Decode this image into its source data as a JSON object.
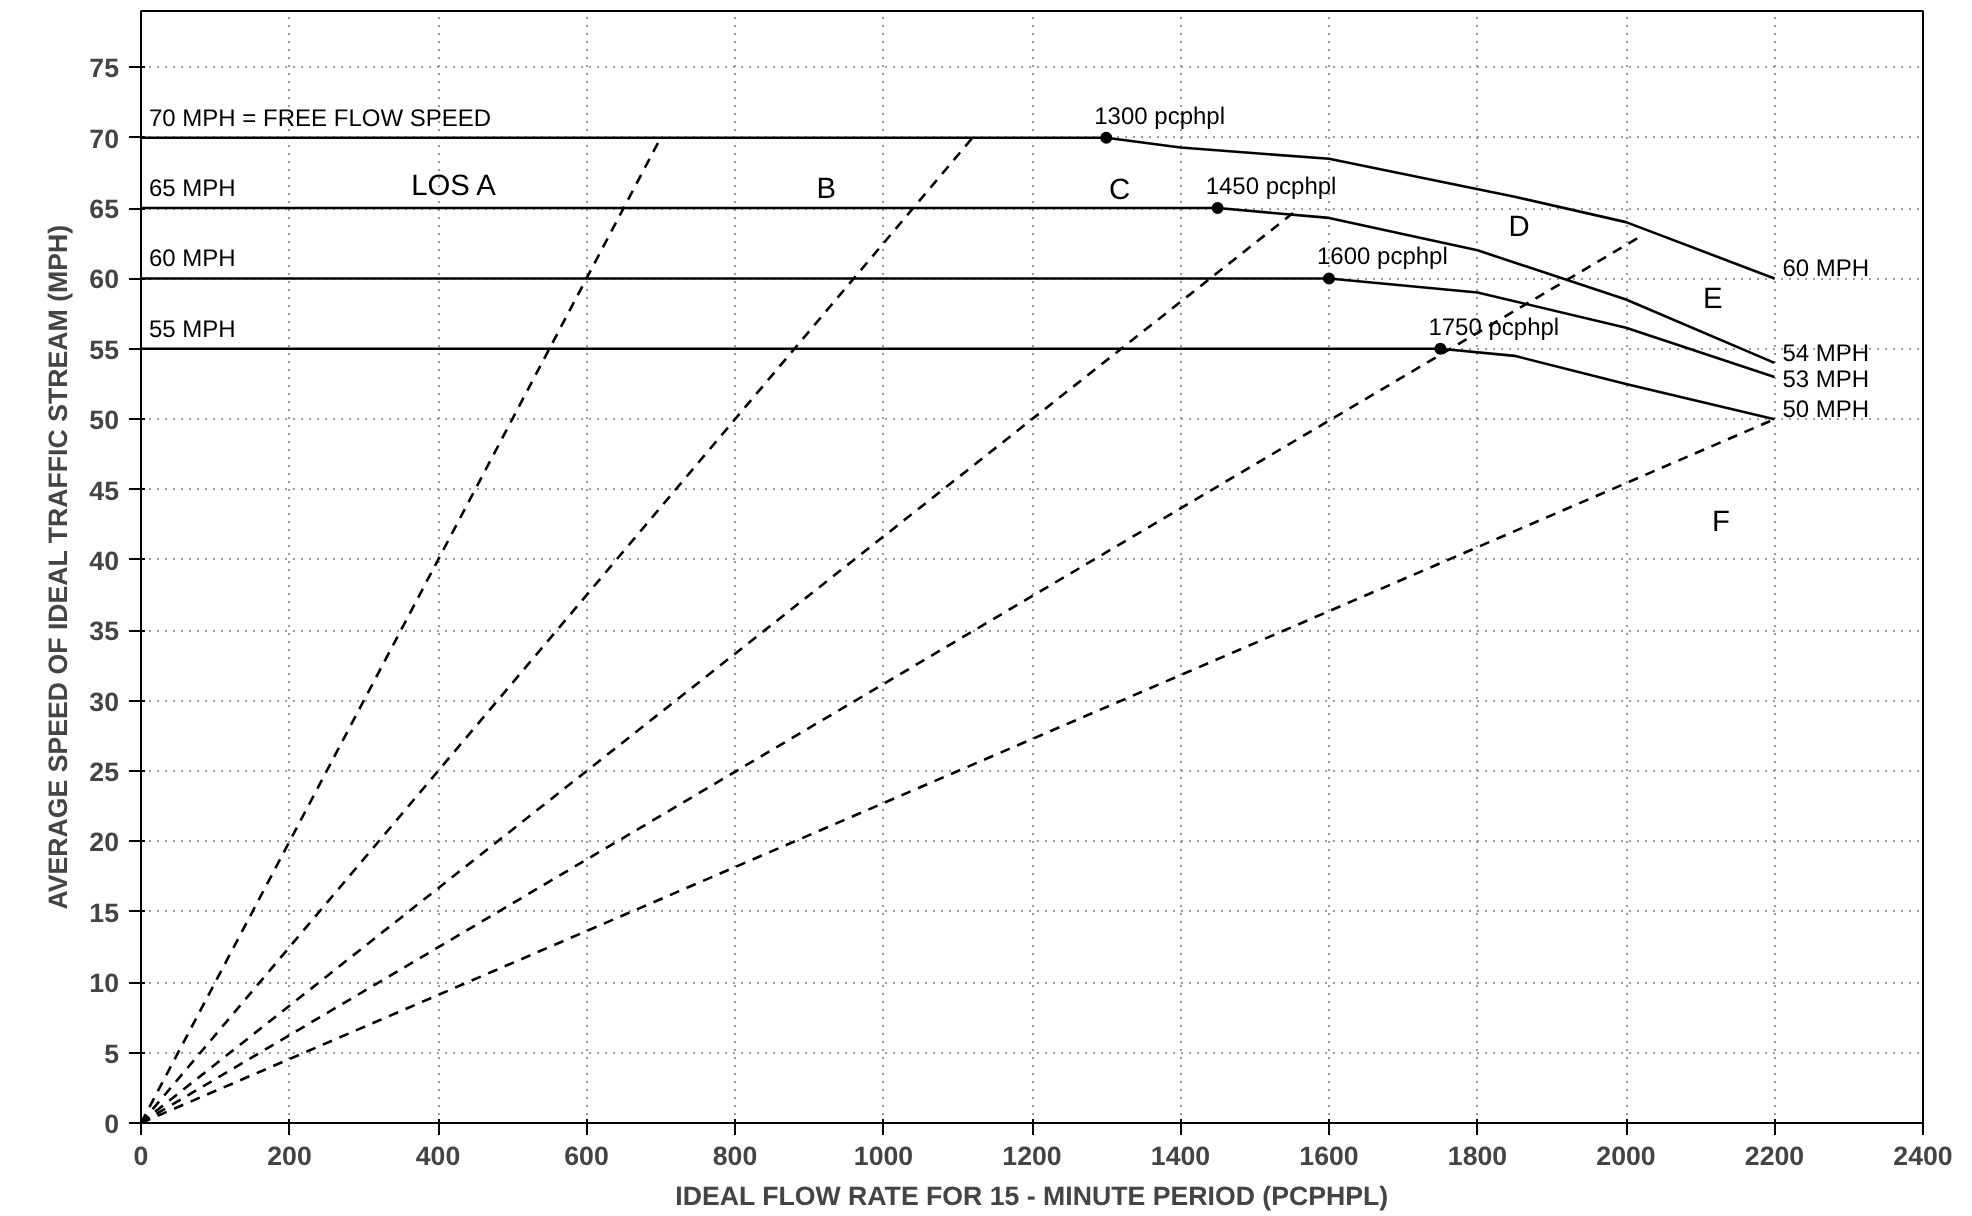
{
  "chart_data": {
    "type": "line",
    "xlabel": "IDEAL FLOW RATE FOR 15 - MINUTE PERIOD (PCPHPL)",
    "ylabel": "AVERAGE SPEED OF IDEAL TRAFFIC STREAM (MPH)",
    "xlim": [
      0,
      2400
    ],
    "ylim": [
      0,
      79
    ],
    "xticks": [
      0,
      200,
      400,
      600,
      800,
      1000,
      1200,
      1400,
      1600,
      1800,
      2000,
      2200,
      2400
    ],
    "yticks": [
      0,
      5,
      10,
      15,
      20,
      25,
      30,
      35,
      40,
      45,
      50,
      55,
      60,
      65,
      70,
      75
    ],
    "grid": true,
    "series": [
      {
        "color": "#000000",
        "line_style": "solid",
        "x": [
          0,
          1300,
          1400,
          1600,
          1850,
          2000,
          2200
        ],
        "values": [
          70,
          70,
          69.3,
          68.5,
          65.8,
          64,
          60
        ]
      },
      {
        "color": "#000000",
        "line_style": "solid",
        "x": [
          0,
          1450,
          1600,
          1800,
          2000,
          2200
        ],
        "values": [
          65,
          65,
          64.3,
          62,
          58.5,
          54
        ]
      },
      {
        "color": "#000000",
        "line_style": "solid",
        "x": [
          0,
          1600,
          1800,
          2000,
          2200
        ],
        "values": [
          60,
          60,
          59,
          56.5,
          53
        ]
      },
      {
        "color": "#000000",
        "line_style": "solid",
        "x": [
          0,
          1750,
          1850,
          2000,
          2200
        ],
        "values": [
          55,
          55,
          54.5,
          52.5,
          50
        ]
      },
      {
        "color": "#000000",
        "line_style": "dashed",
        "x": [
          0,
          700
        ],
        "values": [
          0,
          70
        ]
      },
      {
        "color": "#000000",
        "line_style": "dashed",
        "x": [
          0,
          1120
        ],
        "values": [
          0,
          70
        ]
      },
      {
        "color": "#000000",
        "line_style": "dashed",
        "x": [
          0,
          1560
        ],
        "values": [
          0,
          65
        ]
      },
      {
        "color": "#000000",
        "line_style": "dashed",
        "x": [
          0,
          2020
        ],
        "values": [
          0,
          63
        ]
      },
      {
        "color": "#000000",
        "line_style": "dashed",
        "x": [
          0,
          2200
        ],
        "values": [
          0,
          50
        ]
      },
      {
        "type": "scatter",
        "color": "#000000",
        "marker": "circle",
        "x": [
          1300,
          1450,
          1600,
          1750
        ],
        "values": [
          70,
          65,
          60,
          55
        ]
      }
    ],
    "annotations": [
      {
        "text": "70 MPH = FREE FLOW SPEED",
        "x": 0,
        "y": 70
      },
      {
        "text": "65 MPH",
        "x": 0,
        "y": 65
      },
      {
        "text": "60 MPH",
        "x": 0,
        "y": 60
      },
      {
        "text": "55 MPH",
        "x": 0,
        "y": 55
      },
      "LOS A",
      "B",
      "C",
      "D",
      "E",
      "F",
      {
        "text": "1300 pcphpl",
        "x": 1300,
        "y": 70
      },
      {
        "text": "1450 pcphpl",
        "x": 1450,
        "y": 65
      },
      {
        "text": "1600 pcphpl",
        "x": 1600,
        "y": 60
      },
      {
        "text": "1750 pcphpl",
        "x": 1750,
        "y": 55
      },
      {
        "text": "60 MPH",
        "x": 2200,
        "y": 60
      },
      {
        "text": "54 MPH",
        "x": 2200,
        "y": 54
      },
      {
        "text": "53 MPH",
        "x": 2200,
        "y": 53
      },
      {
        "text": "50 MPH",
        "x": 2200,
        "y": 50
      }
    ]
  }
}
